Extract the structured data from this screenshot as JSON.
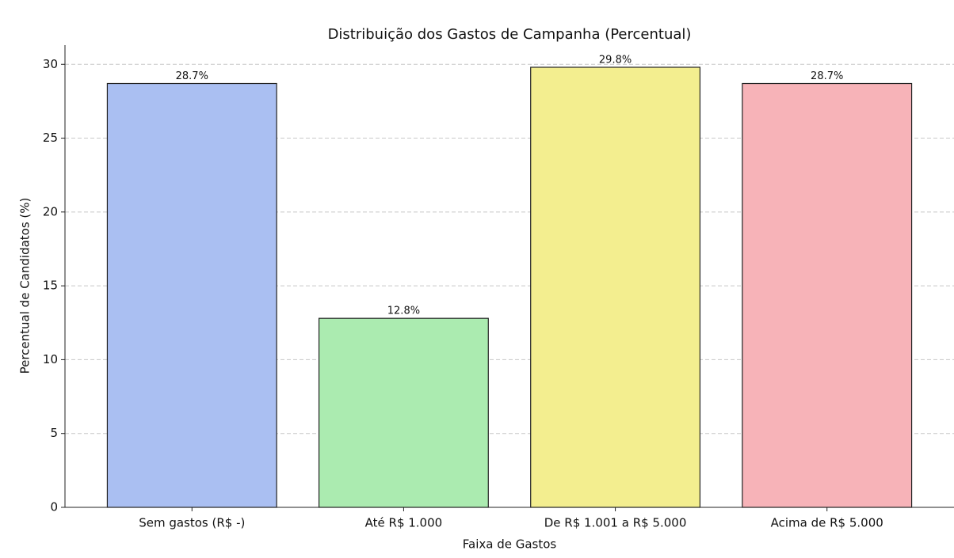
{
  "chart_data": {
    "type": "bar",
    "title": "Distribuição dos Gastos de Campanha (Percentual)",
    "x_label": "Faixa de Gastos",
    "y_label": "Percentual de Candidatos (%)",
    "categories": [
      "Sem gastos (R$ -)",
      "Até R$ 1.000",
      "De R$ 1.001 a R$ 5.000",
      "Acima de R$ 5.000"
    ],
    "values": [
      28.7,
      12.8,
      29.8,
      28.7
    ],
    "value_labels": [
      "28.7%",
      "12.8%",
      "29.8%",
      "28.7%"
    ],
    "colors": [
      "#aabff2",
      "#abebb0",
      "#f3ee8f",
      "#f7b3b8"
    ],
    "ylim": [
      0,
      31.3
    ],
    "yticks": [
      0,
      5,
      10,
      15,
      20,
      25,
      30
    ],
    "grid": true
  }
}
